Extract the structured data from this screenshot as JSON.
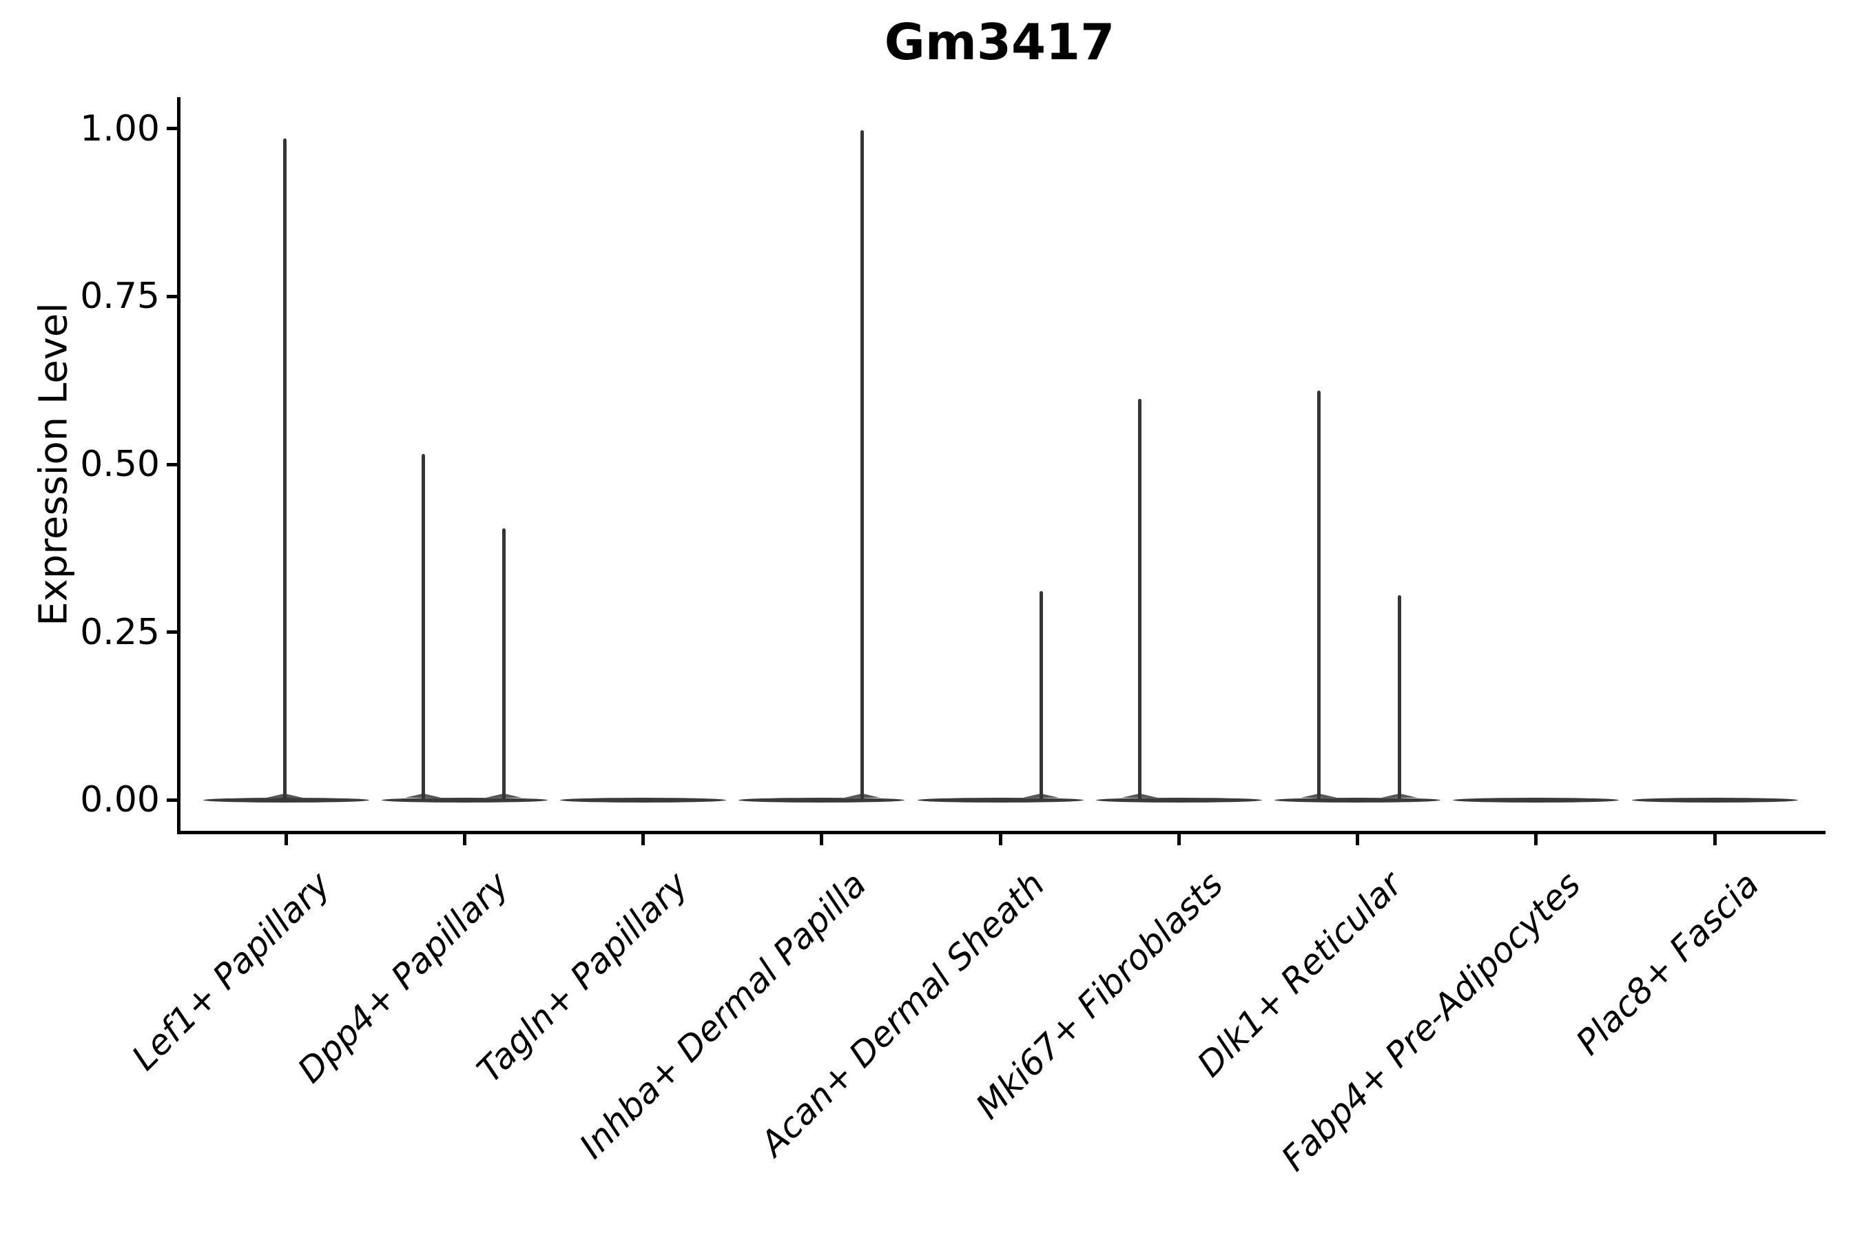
{
  "header": {
    "title": "Gm3417"
  },
  "chart_data": {
    "type": "violin",
    "title": "Gm3417",
    "xlabel": "",
    "ylabel": "Expression Level",
    "ylim": [
      0,
      1.05
    ],
    "grid": false,
    "legend_position": "none",
    "colors": {
      "ink": "#000000",
      "violin": "#3a3a3a"
    },
    "yticks": [
      {
        "value": 1.0,
        "label": "1.00"
      },
      {
        "value": 0.75,
        "label": "0.75"
      },
      {
        "value": 0.5,
        "label": "0.50"
      },
      {
        "value": 0.25,
        "label": "0.25"
      },
      {
        "value": 0.0,
        "label": "0.00"
      }
    ],
    "categories": [
      "Lef1+ Papillary",
      "Dpp4+ Papillary",
      "Tagln+ Papillary",
      "Inhba+ Dermal Papilla",
      "Acan+ Dermal Sheath",
      "Mki67+ Fibroblasts",
      "Dlk1+ Reticular",
      "Fabp4+ Pre-Adipocytes",
      "Plac8+ Fascia"
    ],
    "violins": [
      {
        "category": "Lef1+ Papillary",
        "baseline_value": 0,
        "spikes": [
          {
            "offset": -2,
            "value": 0.985
          }
        ]
      },
      {
        "category": "Dpp4+ Papillary",
        "baseline_value": 0,
        "spikes": [
          {
            "offset": -60,
            "value": 0.515
          },
          {
            "offset": 57,
            "value": 0.405
          }
        ]
      },
      {
        "category": "Tagln+ Papillary",
        "baseline_value": 0,
        "spikes": []
      },
      {
        "category": "Inhba+ Dermal Papilla",
        "baseline_value": 0,
        "spikes": [
          {
            "offset": 59,
            "value": 0.998
          }
        ]
      },
      {
        "category": "Acan+ Dermal Sheath",
        "baseline_value": 0,
        "spikes": [
          {
            "offset": 59,
            "value": 0.311
          }
        ]
      },
      {
        "category": "Mki67+ Fibroblasts",
        "baseline_value": 0,
        "spikes": [
          {
            "offset": -57,
            "value": 0.598
          }
        ]
      },
      {
        "category": "Dlk1+ Reticular",
        "baseline_value": 0,
        "spikes": [
          {
            "offset": -56,
            "value": 0.61
          },
          {
            "offset": 61,
            "value": 0.305
          }
        ]
      },
      {
        "category": "Fabp4+ Pre-Adipocytes",
        "baseline_value": 0,
        "spikes": []
      },
      {
        "category": "Plac8+ Fascia",
        "baseline_value": 0,
        "spikes": []
      }
    ]
  }
}
